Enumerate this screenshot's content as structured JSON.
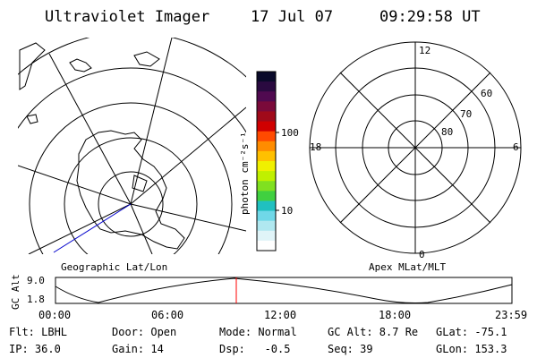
{
  "header": {
    "title": "Ultraviolet Imager",
    "date": "17 Jul 07",
    "time": "09:29:58 UT"
  },
  "colorbar": {
    "unit_label": "photon cm⁻²s⁻¹",
    "ticks": [
      "100",
      "10"
    ],
    "colors": [
      "#0a0a2a",
      "#2a0a40",
      "#500a50",
      "#7a0a3a",
      "#a00a1a",
      "#d00000",
      "#ff4a00",
      "#ff8c00",
      "#ffc000",
      "#f0f000",
      "#c0f000",
      "#80e020",
      "#40d040",
      "#20c0c0",
      "#70d8e8",
      "#b0e8f0",
      "#e0f4f8",
      "#ffffff"
    ]
  },
  "left_plot": {
    "caption": "Geographic Lat/Lon",
    "colors": {
      "lines": "#000000",
      "track": "#0000cc"
    }
  },
  "right_plot": {
    "caption": "Apex MLat/MLT",
    "mlt_labels": {
      "top": "12",
      "left": "18",
      "right": "6",
      "bottom": "0"
    },
    "mlat_labels": [
      "60",
      "70",
      "80"
    ]
  },
  "timeline": {
    "ylabel": "GC Alt",
    "y_ticks": [
      "9.0",
      "1.8"
    ],
    "x_ticks": [
      "00:00",
      "06:00",
      "12:00",
      "18:00",
      "23:59"
    ],
    "current_time_fraction": 0.396,
    "marker_color": "#ff0000"
  },
  "footer": {
    "row1": {
      "flt": "Flt: LBHL",
      "door": "Door: Open",
      "mode": "Mode: Normal",
      "gcalt": "GC Alt: 8.7 Re",
      "glat": "GLat: -75.1"
    },
    "row2": {
      "ip": "IP: 36.0",
      "gain": "Gain: 14",
      "dsp": "Dsp:   -0.5",
      "seq": "Seq: 39",
      "glon": "GLon: 153.3"
    }
  }
}
